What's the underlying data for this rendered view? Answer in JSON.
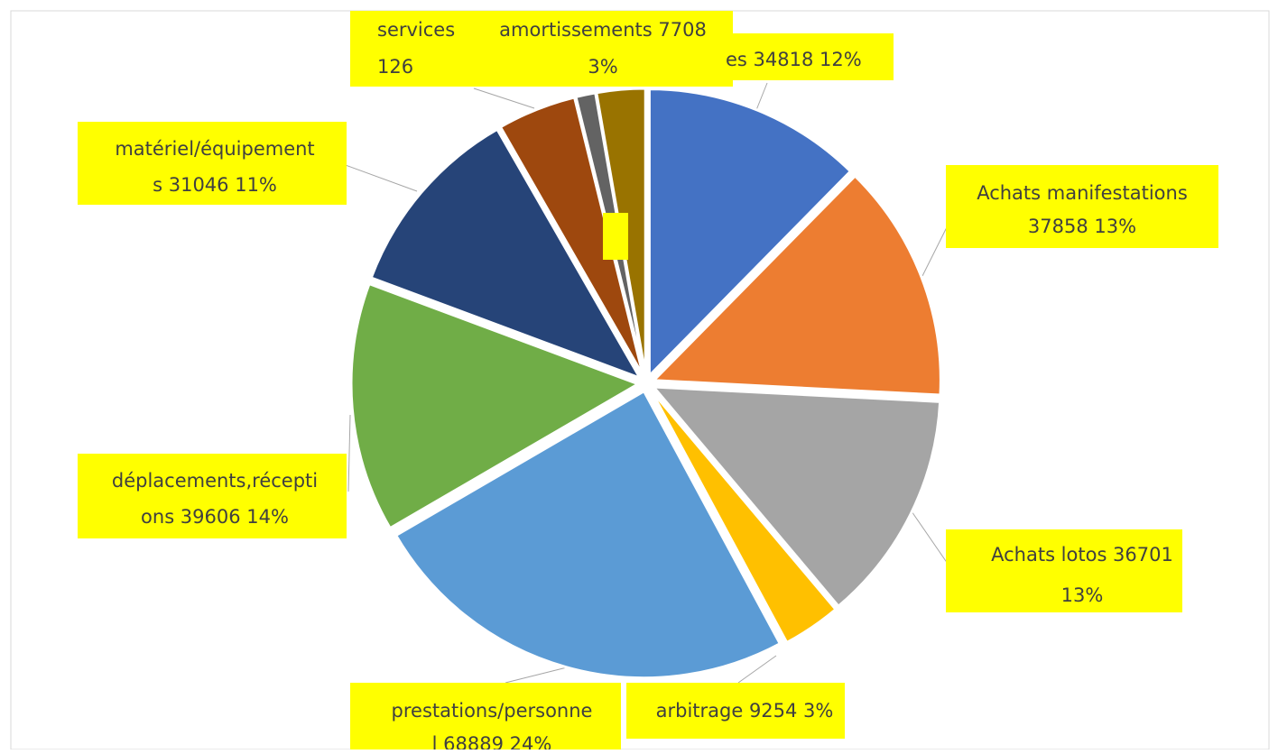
{
  "chart_data": {
    "type": "pie",
    "title": "",
    "legend": "none",
    "slices": [
      {
        "label_lines": [
          "es 34818  12%"
        ],
        "value": 34818,
        "percent": 12,
        "color": "#4472c4"
      },
      {
        "label_lines": [
          "Achats manifestations",
          "37858  13%"
        ],
        "value": 37858,
        "percent": 13,
        "color": "#ed7d31"
      },
      {
        "label_lines": [
          "Achats lotos 36701",
          "13%"
        ],
        "value": 36701,
        "percent": 13,
        "color": "#a5a5a5"
      },
      {
        "label_lines": [
          "arbitrage 9254  3%"
        ],
        "value": 9254,
        "percent": 3,
        "color": "#ffc000"
      },
      {
        "label_lines": [
          "prestations/personne",
          "l 68889  24%"
        ],
        "value": 68889,
        "percent": 24,
        "color": "#5b9bd5"
      },
      {
        "label_lines": [
          "déplacements,récepti",
          "ons 39606  14%"
        ],
        "value": 39606,
        "percent": 14,
        "color": "#70ad47"
      },
      {
        "label_lines": [
          "matériel/équipement",
          "s 31046  11%"
        ],
        "value": 31046,
        "percent": 11,
        "color": "#264478"
      },
      {
        "label_lines": [],
        "value": 12500,
        "percent": 4,
        "color": "#9e480e"
      },
      {
        "label_lines": [
          "services",
          "126"
        ],
        "value": 3126,
        "percent": 1,
        "color": "#636363"
      },
      {
        "label_lines": [
          "amortissements 7708",
          "3%"
        ],
        "value": 7708,
        "percent": 3,
        "color": "#997300"
      }
    ]
  }
}
